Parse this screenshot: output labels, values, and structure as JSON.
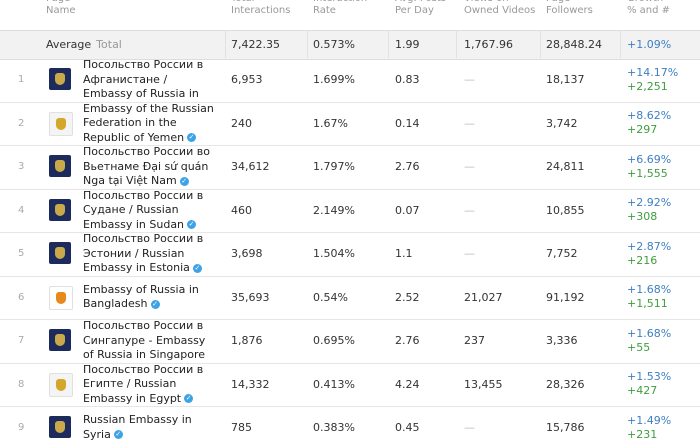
{
  "table": {
    "columns": [
      {
        "top": "Page",
        "bottom": "Name"
      },
      {
        "top": "Total",
        "bottom": "Interactions"
      },
      {
        "top": "Interaction",
        "bottom": "Rate"
      },
      {
        "top": "Avg. Posts",
        "bottom": "Per Day"
      },
      {
        "top": "Views on",
        "bottom": "Owned Videos"
      },
      {
        "top": "Page",
        "bottom": "Followers"
      },
      {
        "top": "Growth",
        "bottom": "% and #"
      }
    ],
    "average": {
      "label": "Average",
      "sublabel": "Total",
      "cells": [
        "7,422.35",
        "0.573%",
        "1.99",
        "1,767.96",
        "28,848.24"
      ],
      "growth_pct": "+1.09%"
    },
    "rows": [
      {
        "index": "1",
        "name": "Посольство России в Афганистане / Embassy of Russia in Afghanistan",
        "cells": [
          "6,953",
          "1.699%",
          "0.83",
          "—",
          "18,137"
        ],
        "growth_pct": "+14.17%",
        "growth_num": "+2,251"
      },
      {
        "index": "2",
        "name": "Embassy of the Russian Federation in the Republic of Yemen",
        "cells": [
          "240",
          "1.67%",
          "0.14",
          "—",
          "3,742"
        ],
        "growth_pct": "+8.62%",
        "growth_num": "+297"
      },
      {
        "index": "3",
        "name": "Посольство России во Вьетнаме Đại sứ quán Nga tại Việt Nam",
        "cells": [
          "34,612",
          "1.797%",
          "2.76",
          "—",
          "24,811"
        ],
        "growth_pct": "+6.69%",
        "growth_num": "+1,555"
      },
      {
        "index": "4",
        "name": "Посольство России в Судане / Russian Embassy in Sudan",
        "cells": [
          "460",
          "2.149%",
          "0.07",
          "—",
          "10,855"
        ],
        "growth_pct": "+2.92%",
        "growth_num": "+308"
      },
      {
        "index": "5",
        "name": "Посольство России в Эстонии / Russian Embassy in Estonia",
        "cells": [
          "3,698",
          "1.504%",
          "1.1",
          "—",
          "7,752"
        ],
        "growth_pct": "+2.87%",
        "growth_num": "+216"
      },
      {
        "index": "6",
        "name": "Embassy of Russia in Bangladesh",
        "cells": [
          "35,693",
          "0.54%",
          "2.52",
          "21,027",
          "91,192"
        ],
        "growth_pct": "+1.68%",
        "growth_num": "+1,511"
      },
      {
        "index": "7",
        "name": "Посольство России в Сингапуре - Embassy of Russia in Singapore",
        "cells": [
          "1,876",
          "0.695%",
          "2.76",
          "237",
          "3,336"
        ],
        "growth_pct": "+1.68%",
        "growth_num": "+55"
      },
      {
        "index": "8",
        "name": "Посольство России в Египте / Russian Embassy in Egypt",
        "cells": [
          "14,332",
          "0.413%",
          "4.24",
          "13,455",
          "28,326"
        ],
        "growth_pct": "+1.53%",
        "growth_num": "+427"
      },
      {
        "index": "9",
        "name": "Russian Embassy in Syria",
        "cells": [
          "785",
          "0.383%",
          "0.45",
          "—",
          "15,786"
        ],
        "growth_pct": "+1.49%",
        "growth_num": "+231"
      }
    ]
  }
}
